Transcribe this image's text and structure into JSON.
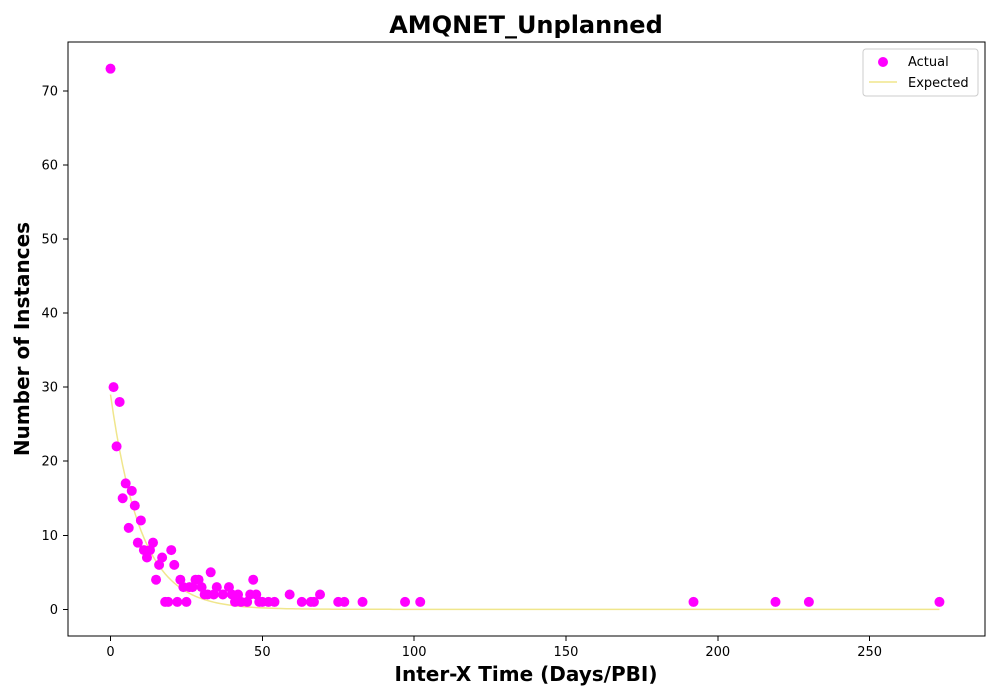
{
  "chart_data": {
    "type": "scatter",
    "title": "AMQNET_Unplanned",
    "xlabel": "Inter-X Time (Days/PBI)",
    "ylabel": "Number of Instances",
    "xlim": [
      -14,
      288
    ],
    "ylim": [
      -3.6,
      76.6
    ],
    "xticks": [
      0,
      50,
      100,
      150,
      200,
      250
    ],
    "yticks": [
      0,
      10,
      20,
      30,
      40,
      50,
      60,
      70
    ],
    "grid": false,
    "legend_position": "top-right",
    "series": [
      {
        "name": "Actual",
        "type": "scatter",
        "color": "#ff00ff",
        "points": [
          [
            0,
            73
          ],
          [
            1,
            30
          ],
          [
            2,
            22
          ],
          [
            3,
            28
          ],
          [
            4,
            15
          ],
          [
            5,
            17
          ],
          [
            6,
            11
          ],
          [
            7,
            16
          ],
          [
            8,
            14
          ],
          [
            9,
            9
          ],
          [
            10,
            12
          ],
          [
            11,
            8
          ],
          [
            12,
            7
          ],
          [
            13,
            8
          ],
          [
            14,
            9
          ],
          [
            15,
            4
          ],
          [
            16,
            6
          ],
          [
            17,
            7
          ],
          [
            18,
            1
          ],
          [
            19,
            1
          ],
          [
            20,
            8
          ],
          [
            21,
            6
          ],
          [
            22,
            1
          ],
          [
            23,
            4
          ],
          [
            24,
            3
          ],
          [
            25,
            1
          ],
          [
            26,
            3
          ],
          [
            27,
            3
          ],
          [
            28,
            4
          ],
          [
            29,
            4
          ],
          [
            30,
            3
          ],
          [
            31,
            2
          ],
          [
            32,
            2
          ],
          [
            33,
            5
          ],
          [
            34,
            2
          ],
          [
            35,
            3
          ],
          [
            37,
            2
          ],
          [
            39,
            3
          ],
          [
            40,
            2
          ],
          [
            41,
            1
          ],
          [
            42,
            2
          ],
          [
            43,
            1
          ],
          [
            45,
            1
          ],
          [
            46,
            2
          ],
          [
            47,
            4
          ],
          [
            48,
            2
          ],
          [
            49,
            1
          ],
          [
            50,
            1
          ],
          [
            52,
            1
          ],
          [
            54,
            1
          ],
          [
            59,
            2
          ],
          [
            63,
            1
          ],
          [
            66,
            1
          ],
          [
            67,
            1
          ],
          [
            69,
            2
          ],
          [
            75,
            1
          ],
          [
            77,
            1
          ],
          [
            83,
            1
          ],
          [
            97,
            1
          ],
          [
            102,
            1
          ],
          [
            192,
            1
          ],
          [
            219,
            1
          ],
          [
            230,
            1
          ],
          [
            273,
            1
          ]
        ]
      },
      {
        "name": "Expected",
        "type": "line",
        "color": "#f0e68c",
        "amplitude": 29,
        "decay_rate": 0.1,
        "x_range": [
          0,
          273
        ]
      }
    ]
  }
}
